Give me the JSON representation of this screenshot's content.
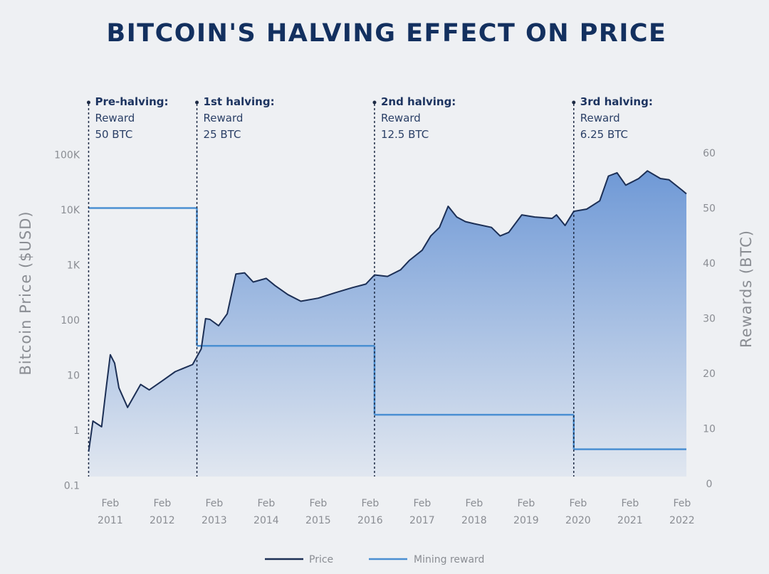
{
  "chart_data": {
    "type": "area",
    "title": "BITCOIN'S HALVING EFFECT ON PRICE",
    "xlabel": "",
    "ylabel": "Bitcoin Price ($USD)",
    "y2label": "Rewards (BTC)",
    "y_scale": "log",
    "ylim": [
      0.1,
      100000
    ],
    "y2lim": [
      0,
      60
    ],
    "grid": false,
    "legend_position": "bottom",
    "y_ticks": [
      "100K",
      "10K",
      "1K",
      "100",
      "10",
      "1",
      "0.1"
    ],
    "y_tick_values": [
      100000,
      10000,
      1000,
      100,
      10,
      1,
      0.1
    ],
    "y2_ticks": [
      "60",
      "50",
      "40",
      "30",
      "20",
      "10",
      "0"
    ],
    "y2_tick_values": [
      60,
      50,
      40,
      30,
      20,
      10,
      0
    ],
    "x_ticks": [
      {
        "month": "Feb",
        "year": "2011",
        "date": "2011-02"
      },
      {
        "month": "Feb",
        "year": "2012",
        "date": "2012-02"
      },
      {
        "month": "Feb",
        "year": "2013",
        "date": "2013-02"
      },
      {
        "month": "Feb",
        "year": "2014",
        "date": "2014-02"
      },
      {
        "month": "Feb",
        "year": "2015",
        "date": "2015-02"
      },
      {
        "month": "Feb",
        "year": "2016",
        "date": "2016-02"
      },
      {
        "month": "Feb",
        "year": "2017",
        "date": "2017-02"
      },
      {
        "month": "Feb",
        "year": "2018",
        "date": "2018-02"
      },
      {
        "month": "Feb",
        "year": "2019",
        "date": "2019-02"
      },
      {
        "month": "Feb",
        "year": "2020",
        "date": "2020-02"
      },
      {
        "month": "Feb",
        "year": "2021",
        "date": "2021-02"
      },
      {
        "month": "Feb",
        "year": "2022",
        "date": "2022-02"
      }
    ],
    "series": [
      {
        "name": "Price",
        "axis": "left",
        "color": "#1c2f55",
        "fill_top": "#6f99d6",
        "fill_bottom": "#e1e7f0",
        "points": [
          [
            "2010-09",
            0.41
          ],
          [
            "2010-10",
            1.47
          ],
          [
            "2010-12",
            1.16
          ],
          [
            "2011-01",
            5.4
          ],
          [
            "2011-02",
            23.5
          ],
          [
            "2011-03",
            16.5
          ],
          [
            "2011-04",
            5.9
          ],
          [
            "2011-06",
            2.6
          ],
          [
            "2011-09",
            6.8
          ],
          [
            "2011-11",
            5.4
          ],
          [
            "2012-02",
            7.9
          ],
          [
            "2012-05",
            11.6
          ],
          [
            "2012-09",
            15.6
          ],
          [
            "2012-11",
            30
          ],
          [
            "2012-12",
            106
          ],
          [
            "2013-01",
            103
          ],
          [
            "2013-03",
            79
          ],
          [
            "2013-05",
            130
          ],
          [
            "2013-07",
            685
          ],
          [
            "2013-09",
            720
          ],
          [
            "2013-11",
            490
          ],
          [
            "2014-02",
            570
          ],
          [
            "2014-04",
            425
          ],
          [
            "2014-07",
            290
          ],
          [
            "2014-10",
            220
          ],
          [
            "2015-02",
            250
          ],
          [
            "2015-06",
            315
          ],
          [
            "2015-10",
            390
          ],
          [
            "2016-01",
            450
          ],
          [
            "2016-03",
            660
          ],
          [
            "2016-06",
            620
          ],
          [
            "2016-09",
            815
          ],
          [
            "2016-11",
            1200
          ],
          [
            "2017-02",
            1850
          ],
          [
            "2017-04",
            3360
          ],
          [
            "2017-06",
            4800
          ],
          [
            "2017-08",
            11600
          ],
          [
            "2017-10",
            7400
          ],
          [
            "2017-12",
            6100
          ],
          [
            "2018-02",
            5600
          ],
          [
            "2018-06",
            4800
          ],
          [
            "2018-08",
            3360
          ],
          [
            "2018-10",
            3900
          ],
          [
            "2019-01",
            8100
          ],
          [
            "2019-04",
            7400
          ],
          [
            "2019-08",
            7000
          ],
          [
            "2019-09",
            8100
          ],
          [
            "2019-11",
            5200
          ],
          [
            "2020-01",
            9400
          ],
          [
            "2020-04",
            10300
          ],
          [
            "2020-07",
            14600
          ],
          [
            "2020-09",
            41000
          ],
          [
            "2020-11",
            47000
          ],
          [
            "2021-01",
            28000
          ],
          [
            "2021-04",
            37000
          ],
          [
            "2021-06",
            51000
          ],
          [
            "2021-09",
            37000
          ],
          [
            "2021-11",
            35000
          ],
          [
            "2022-02",
            22700
          ],
          [
            "2022-03",
            19500
          ]
        ]
      },
      {
        "name": "Mining reward",
        "axis": "right",
        "color": "#4a8fd2",
        "steps": [
          {
            "from": "2010-09",
            "to": "2012-10",
            "reward": 50
          },
          {
            "from": "2012-10",
            "to": "2016-03",
            "reward": 25
          },
          {
            "from": "2016-03",
            "to": "2020-01",
            "reward": 12.5
          },
          {
            "from": "2020-01",
            "to": "2022-03",
            "reward": 6.25
          }
        ]
      }
    ],
    "annotations": [
      {
        "date": "2010-09",
        "title": "Pre-halving:",
        "line1": "Reward",
        "line2": "50 BTC"
      },
      {
        "date": "2012-10",
        "title": "1st halving:",
        "line1": "Reward",
        "line2": "25 BTC"
      },
      {
        "date": "2016-03",
        "title": "2nd halving:",
        "line1": "Reward",
        "line2": "12.5 BTC"
      },
      {
        "date": "2020-01",
        "title": "3rd halving:",
        "line1": "Reward",
        "line2": "6.25 BTC"
      }
    ]
  }
}
